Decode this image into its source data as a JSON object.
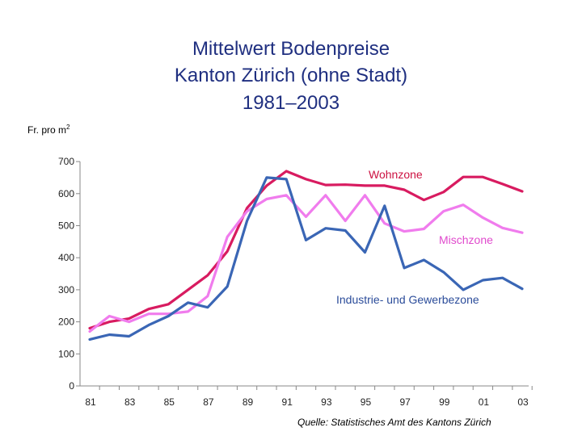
{
  "title_lines": [
    "Mittelwert Bodenpreise",
    "Kanton Zürich (ohne Stadt)",
    "1981–2003"
  ],
  "unit_label": "Fr. pro m",
  "unit_sup": "2",
  "source": "Quelle: Statistisches Amt des Kantons Zürich",
  "chart_data": {
    "type": "line",
    "title": "Mittelwert Bodenpreise Kanton Zürich (ohne Stadt) 1981–2003",
    "ylabel": "Fr. pro m²",
    "xlabel": "",
    "ylim": [
      0,
      700
    ],
    "yticks": [
      0,
      100,
      200,
      300,
      400,
      500,
      600,
      700
    ],
    "x": [
      "81",
      "82",
      "83",
      "84",
      "85",
      "86",
      "87",
      "88",
      "89",
      "90",
      "91",
      "92",
      "93",
      "94",
      "95",
      "96",
      "97",
      "98",
      "99",
      "00",
      "01",
      "02",
      "03"
    ],
    "xtick_labels": [
      "81",
      "83",
      "85",
      "87",
      "89",
      "91",
      "93",
      "95",
      "97",
      "99",
      "01",
      "03"
    ],
    "grid": false,
    "series": [
      {
        "name": "Wohnzone",
        "color": "#d81b60",
        "values": [
          180,
          200,
          210,
          240,
          255,
          300,
          345,
          420,
          555,
          625,
          670,
          645,
          627,
          628,
          625,
          625,
          612,
          580,
          605,
          652,
          652,
          630,
          607
        ]
      },
      {
        "name": "Mischzone",
        "color": "#f07ced",
        "values": [
          170,
          218,
          200,
          225,
          225,
          232,
          280,
          465,
          545,
          583,
          595,
          528,
          595,
          515,
          595,
          507,
          482,
          490,
          545,
          565,
          525,
          493,
          478
        ]
      },
      {
        "name": "Industrie- und Gewerbezone",
        "color": "#3a66b5",
        "values": [
          145,
          160,
          155,
          190,
          218,
          260,
          245,
          310,
          515,
          650,
          645,
          455,
          492,
          485,
          417,
          562,
          368,
          393,
          355,
          300,
          330,
          337,
          303
        ]
      }
    ]
  }
}
